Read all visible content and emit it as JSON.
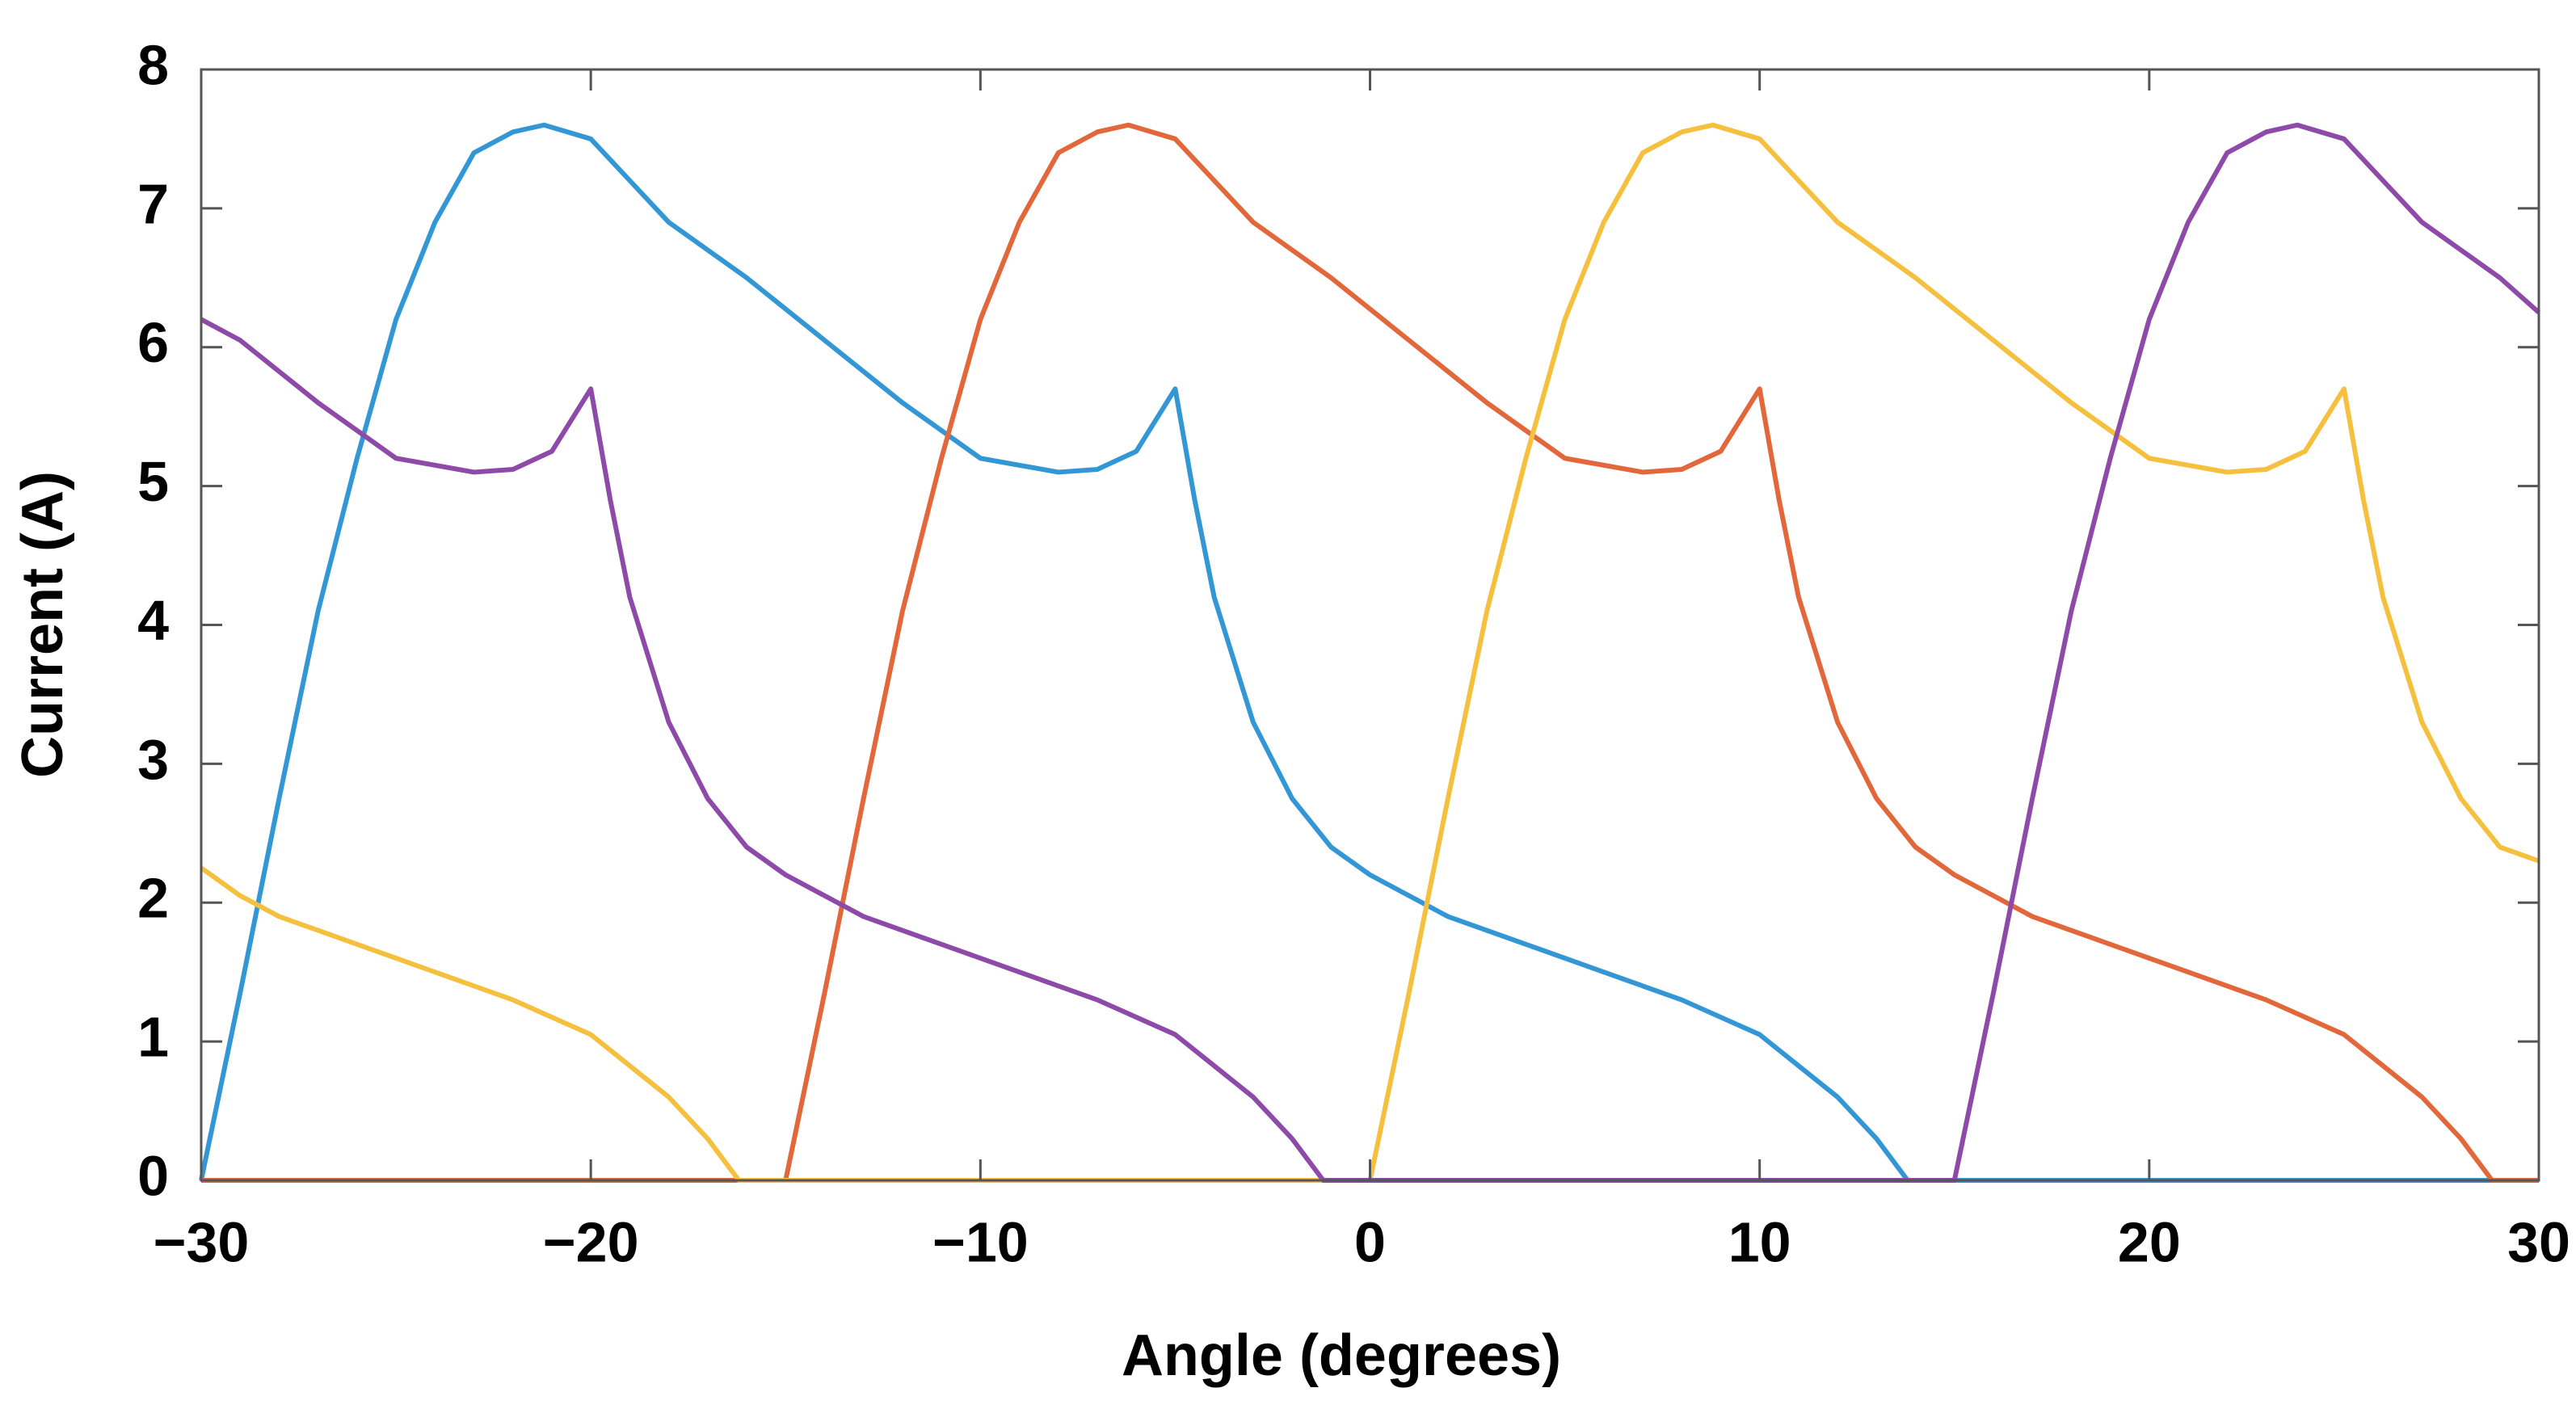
{
  "chart_data": {
    "type": "line",
    "xlabel": "Angle (degrees)",
    "ylabel": "Current (A)",
    "xlim": [
      -30,
      30
    ],
    "ylim": [
      0,
      8
    ],
    "xticks": [
      {
        "value": -30,
        "label": "−30"
      },
      {
        "value": -20,
        "label": "−20"
      },
      {
        "value": -10,
        "label": "−10"
      },
      0,
      10,
      20,
      30
    ],
    "yticks": [
      0,
      1,
      2,
      3,
      4,
      5,
      6,
      7,
      8
    ],
    "grid": false,
    "series": [
      {
        "color": "#3397d6",
        "x": [
          -30,
          -29,
          -28,
          -27,
          -26,
          -25,
          -24,
          -23,
          -22,
          -21.2,
          -20,
          -19,
          -18,
          -16,
          -14,
          -12,
          -10,
          -8,
          -7,
          -6,
          -5,
          -4.5,
          -4,
          -3,
          -2,
          -1,
          0,
          1,
          2,
          4,
          6,
          8,
          10,
          12,
          13,
          13.8,
          30
        ],
        "values": [
          0,
          1.35,
          2.75,
          4.1,
          5.2,
          6.2,
          6.9,
          7.4,
          7.55,
          7.6,
          7.5,
          7.2,
          6.9,
          6.5,
          6.05,
          5.6,
          5.2,
          5.1,
          5.12,
          5.25,
          5.7,
          4.9,
          4.2,
          3.3,
          2.75,
          2.4,
          2.2,
          2.05,
          1.9,
          1.7,
          1.5,
          1.3,
          1.05,
          0.6,
          0.3,
          0,
          0
        ]
      },
      {
        "color": "#e2673b",
        "x": [
          -30,
          -15,
          -14,
          -13,
          -12,
          -11,
          -10,
          -9,
          -8,
          -7,
          -6.2,
          -5,
          -4,
          -3,
          -1,
          1,
          3,
          5,
          7,
          8,
          9,
          10,
          10.5,
          11,
          12,
          13,
          14,
          15,
          16,
          17,
          19,
          21,
          23,
          25,
          27,
          28,
          28.8,
          30
        ],
        "values": [
          0,
          0,
          1.35,
          2.75,
          4.1,
          5.2,
          6.2,
          6.9,
          7.4,
          7.55,
          7.6,
          7.5,
          7.2,
          6.9,
          6.5,
          6.05,
          5.6,
          5.2,
          5.1,
          5.12,
          5.25,
          5.7,
          4.9,
          4.2,
          3.3,
          2.75,
          2.4,
          2.2,
          2.05,
          1.9,
          1.7,
          1.5,
          1.3,
          1.05,
          0.6,
          0.3,
          0,
          0
        ]
      },
      {
        "color": "#f6c03f",
        "x": [
          -30,
          -29,
          -28,
          -26,
          -24,
          -22,
          -20,
          -18,
          -17,
          -16.2,
          0,
          1,
          2,
          3,
          4,
          5,
          6,
          7,
          8,
          8.8,
          10,
          11,
          12,
          14,
          16,
          18,
          20,
          22,
          23,
          24,
          25,
          25.5,
          26,
          27,
          28,
          29,
          30
        ],
        "values": [
          2.25,
          2.05,
          1.9,
          1.7,
          1.5,
          1.3,
          1.05,
          0.6,
          0.3,
          0,
          0,
          1.35,
          2.75,
          4.1,
          5.2,
          6.2,
          6.9,
          7.4,
          7.55,
          7.6,
          7.5,
          7.2,
          6.9,
          6.5,
          6.05,
          5.6,
          5.2,
          5.1,
          5.12,
          5.25,
          5.7,
          4.9,
          4.2,
          3.3,
          2.75,
          2.4,
          2.3
        ]
      },
      {
        "color": "#8e4aa8",
        "x": [
          -30,
          -29,
          -27,
          -25,
          -23,
          -22,
          -21,
          -20,
          -19.5,
          -19,
          -18,
          -17,
          -16,
          -15,
          -14,
          -13,
          -11,
          -9,
          -7,
          -5,
          -3,
          -2,
          -1.2,
          15,
          16,
          17,
          18,
          19,
          20,
          21,
          22,
          23,
          23.8,
          25,
          26,
          27,
          29,
          30
        ],
        "values": [
          6.2,
          6.05,
          5.6,
          5.2,
          5.1,
          5.12,
          5.25,
          5.7,
          4.9,
          4.2,
          3.3,
          2.75,
          2.4,
          2.2,
          2.05,
          1.9,
          1.7,
          1.5,
          1.3,
          1.05,
          0.6,
          0.3,
          0,
          0,
          1.35,
          2.75,
          4.1,
          5.2,
          6.2,
          6.9,
          7.4,
          7.55,
          7.6,
          7.5,
          7.2,
          6.9,
          6.5,
          6.25
        ]
      }
    ]
  }
}
